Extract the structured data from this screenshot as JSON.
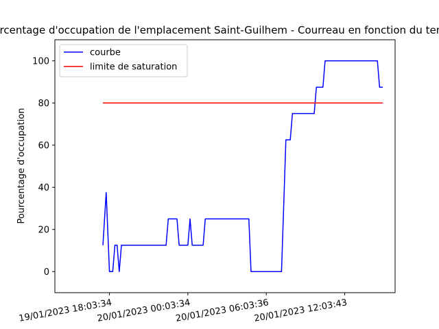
{
  "chart_data": {
    "type": "line",
    "title": "Pourcentage d'occupation de l'emplacement Saint-Guilhem - Courreau en fonction du temps",
    "xlabel": "",
    "ylabel": "Pourcentage d'occupation",
    "ylim": [
      -10,
      110
    ],
    "yticks": [
      0,
      20,
      40,
      60,
      80,
      100
    ],
    "xlim": [
      "2023-01-19T13:53:00",
      "2023-01-20T15:55:00"
    ],
    "xticks": [
      {
        "value": "2023-01-19T18:03:34",
        "label": "19/01/2023 18:03:34"
      },
      {
        "value": "2023-01-20T00:03:34",
        "label": "20/01/2023 00:03:34"
      },
      {
        "value": "2023-01-20T06:03:36",
        "label": "20/01/2023 06:03:36"
      },
      {
        "value": "2023-01-20T12:03:43",
        "label": "20/01/2023 12:03:43"
      }
    ],
    "grid": false,
    "legend_position": "top-left",
    "series": [
      {
        "name": "courbe",
        "color": "#0000ff",
        "points": [
          [
            "2023-01-19T17:33:34",
            12.5
          ],
          [
            "2023-01-19T17:48:34",
            37.5
          ],
          [
            "2023-01-19T17:58:34",
            12.5
          ],
          [
            "2023-01-19T18:03:34",
            0
          ],
          [
            "2023-01-19T18:18:34",
            0
          ],
          [
            "2023-01-19T18:28:34",
            12.5
          ],
          [
            "2023-01-19T18:38:34",
            12.5
          ],
          [
            "2023-01-19T18:48:34",
            0
          ],
          [
            "2023-01-19T18:58:34",
            12.5
          ],
          [
            "2023-01-19T22:23:34",
            12.5
          ],
          [
            "2023-01-19T22:33:34",
            25
          ],
          [
            "2023-01-19T23:13:34",
            25
          ],
          [
            "2023-01-19T23:23:34",
            12.5
          ],
          [
            "2023-01-20T00:03:34",
            12.5
          ],
          [
            "2023-01-20T00:13:34",
            25
          ],
          [
            "2023-01-20T00:23:34",
            12.5
          ],
          [
            "2023-01-20T01:13:34",
            12.5
          ],
          [
            "2023-01-20T01:23:34",
            25
          ],
          [
            "2023-01-20T04:43:35",
            25
          ],
          [
            "2023-01-20T04:53:35",
            0
          ],
          [
            "2023-01-20T07:13:36",
            0
          ],
          [
            "2023-01-20T07:33:36",
            62.5
          ],
          [
            "2023-01-20T07:53:36",
            62.5
          ],
          [
            "2023-01-20T08:03:36",
            75
          ],
          [
            "2023-01-20T09:43:36",
            75
          ],
          [
            "2023-01-20T09:53:36",
            87.5
          ],
          [
            "2023-01-20T10:23:36",
            87.5
          ],
          [
            "2023-01-20T10:33:36",
            100
          ],
          [
            "2023-01-20T14:33:43",
            100
          ],
          [
            "2023-01-20T14:43:43",
            87.5
          ],
          [
            "2023-01-20T14:58:43",
            87.5
          ]
        ]
      },
      {
        "name": "limite de saturation",
        "color": "#ff0000",
        "points": [
          [
            "2023-01-19T17:33:34",
            80
          ],
          [
            "2023-01-20T14:58:43",
            80
          ]
        ]
      }
    ]
  }
}
